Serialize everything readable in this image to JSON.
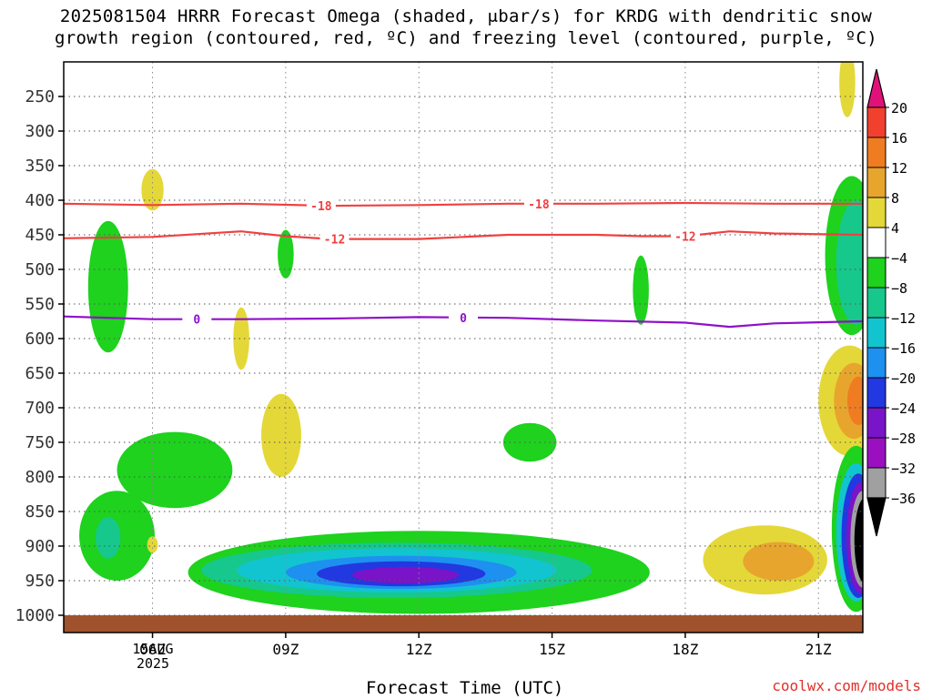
{
  "title_lines": [
    "2025081504 HRRR Forecast Omega (shaded, μbar/s) for KRDG with dendritic snow",
    "growth region (contoured, red, ºC) and freezing level (contoured, purple, ºC)"
  ],
  "credit": "coolwx.com/models",
  "chart_data": {
    "type": "heatmap",
    "xlabel": "Forecast Time (UTC)",
    "ylabel": "",
    "x_axis": {
      "ticks": [
        "06Z",
        "09Z",
        "12Z",
        "15Z",
        "18Z",
        "21Z"
      ],
      "tick_hours": [
        6,
        9,
        12,
        15,
        18,
        21
      ],
      "range_hours": [
        4,
        22
      ],
      "date_label": [
        "15AUG",
        "2025"
      ]
    },
    "y_axis": {
      "ticks": [
        250,
        300,
        350,
        400,
        450,
        500,
        550,
        600,
        650,
        700,
        750,
        800,
        850,
        900,
        950,
        1000
      ],
      "range_hpa": [
        200,
        1025
      ],
      "inverted": true
    },
    "grid": true,
    "colorbar": {
      "labels": [
        "20",
        "16",
        "12",
        "8",
        "4",
        "−4",
        "−8",
        "−12",
        "−16",
        "−20",
        "−24",
        "−28",
        "−32",
        "−36"
      ],
      "bins": [
        {
          "min": 20,
          "color": "#e0127a"
        },
        {
          "min": 16,
          "max": 20,
          "color": "#f2402e"
        },
        {
          "min": 12,
          "max": 16,
          "color": "#f07c22"
        },
        {
          "min": 8,
          "max": 12,
          "color": "#e8a52e"
        },
        {
          "min": 4,
          "max": 8,
          "color": "#e4d838"
        },
        {
          "min": -4,
          "max": 4,
          "color": "#ffffff"
        },
        {
          "min": -8,
          "max": -4,
          "color": "#1ed21e"
        },
        {
          "min": -12,
          "max": -8,
          "color": "#16c88c"
        },
        {
          "min": -16,
          "max": -12,
          "color": "#12c4d0"
        },
        {
          "min": -20,
          "max": -16,
          "color": "#1e90f0"
        },
        {
          "min": -24,
          "max": -20,
          "color": "#2238e0"
        },
        {
          "min": -28,
          "max": -24,
          "color": "#7a14c8"
        },
        {
          "min": -32,
          "max": -28,
          "color": "#9a10c0"
        },
        {
          "min": -36,
          "max": -32,
          "color": "#a0a0a0"
        },
        {
          "max": -36,
          "color": "#000000"
        }
      ]
    },
    "contours": [
      {
        "name": "dendritic snow growth region",
        "units": "ºC",
        "color": "#f04040",
        "lines": [
          {
            "level": "-18",
            "x": [
              4,
              6,
              8,
              10,
              12,
              14,
              16,
              18,
              20,
              22
            ],
            "y": [
              405,
              407,
              405,
              408,
              407,
              405,
              405,
              404,
              405,
              405
            ],
            "label_x": [
              9.8,
              14.7
            ]
          },
          {
            "level": "-12",
            "x": [
              4,
              6,
              8,
              9,
              10,
              12,
              14,
              16,
              17,
              18,
              19,
              20,
              22
            ],
            "y": [
              455,
              453,
              445,
              452,
              456,
              456,
              450,
              450,
              452,
              452,
              445,
              448,
              450
            ],
            "label_x": [
              10.1,
              18.0
            ]
          }
        ]
      },
      {
        "name": "freezing level",
        "units": "ºC",
        "color": "#9010c8",
        "lines": [
          {
            "level": "0",
            "x": [
              4,
              6,
              8,
              10,
              12,
              14,
              16,
              18,
              19,
              20,
              22
            ],
            "y": [
              568,
              572,
              572,
              571,
              569,
              570,
              574,
              577,
              583,
              578,
              575
            ],
            "label_x": [
              7.0,
              13.0
            ]
          }
        ]
      }
    ],
    "omega_regions": [
      {
        "bin": "-8 to -4",
        "shape": "ellipse",
        "t": 5.0,
        "p": 525,
        "rt": 0.45,
        "rp": 95
      },
      {
        "bin": "4 to 8",
        "shape": "ellipse",
        "t": 6.0,
        "p": 385,
        "rt": 0.25,
        "rp": 30
      },
      {
        "bin": "-8 to -4",
        "shape": "ellipse",
        "t": 9.0,
        "p": 478,
        "rt": 0.18,
        "rp": 35
      },
      {
        "bin": "4 to 8",
        "shape": "ellipse",
        "t": 8.0,
        "p": 600,
        "rt": 0.18,
        "rp": 45
      },
      {
        "bin": "4 to 8",
        "shape": "ellipse",
        "t": 8.9,
        "p": 740,
        "rt": 0.45,
        "rp": 60
      },
      {
        "bin": "-8 to -4",
        "shape": "ellipse",
        "t": 17.0,
        "p": 530,
        "rt": 0.18,
        "rp": 50
      },
      {
        "bin": "-8 to -4",
        "shape": "ellipse",
        "t": 14.5,
        "p": 750,
        "rt": 0.6,
        "rp": 28
      },
      {
        "bin": "-8 to -4",
        "shape": "ellipse",
        "t": 5.2,
        "p": 885,
        "rt": 0.85,
        "rp": 65
      },
      {
        "bin": "-8 to -4",
        "shape": "ellipse",
        "t": 6.5,
        "p": 790,
        "rt": 1.3,
        "rp": 55
      },
      {
        "bin": "-12 to -8",
        "shape": "ellipse",
        "t": 5.0,
        "p": 888,
        "rt": 0.28,
        "rp": 30
      },
      {
        "bin": "4 to 8",
        "shape": "ellipse",
        "t": 6.0,
        "p": 898,
        "rt": 0.12,
        "rp": 12
      },
      {
        "bin": "-8 to -4",
        "shape": "ellipse",
        "t": 12.0,
        "p": 938,
        "rt": 5.2,
        "rp": 60
      },
      {
        "bin": "-12 to -8",
        "shape": "ellipse",
        "t": 11.5,
        "p": 935,
        "rt": 4.4,
        "rp": 40
      },
      {
        "bin": "-16 to -12",
        "shape": "ellipse",
        "t": 11.5,
        "p": 935,
        "rt": 3.6,
        "rp": 32
      },
      {
        "bin": "-20 to -16",
        "shape": "ellipse",
        "t": 11.6,
        "p": 938,
        "rt": 2.6,
        "rp": 24
      },
      {
        "bin": "-24 to -20",
        "shape": "ellipse",
        "t": 11.6,
        "p": 940,
        "rt": 1.9,
        "rp": 18
      },
      {
        "bin": "-28 to -24",
        "shape": "ellipse",
        "t": 11.7,
        "p": 942,
        "rt": 1.2,
        "rp": 12
      },
      {
        "bin": "4 to 8",
        "shape": "ellipse",
        "t": 19.8,
        "p": 920,
        "rt": 1.4,
        "rp": 50
      },
      {
        "bin": "8 to 12",
        "shape": "ellipse",
        "t": 20.1,
        "p": 922,
        "rt": 0.8,
        "rp": 28
      },
      {
        "bin": "4 to 8",
        "shape": "ellipse",
        "t": 21.65,
        "p": 230,
        "rt": 0.18,
        "rp": 50
      },
      {
        "bin": "-8 to -4",
        "shape": "ellipse",
        "t": 21.75,
        "p": 480,
        "rt": 0.6,
        "rp": 115
      },
      {
        "bin": "-12 to -8",
        "shape": "ellipse",
        "t": 21.85,
        "p": 490,
        "rt": 0.45,
        "rp": 90
      },
      {
        "bin": "4 to 8",
        "shape": "ellipse",
        "t": 21.7,
        "p": 690,
        "rt": 0.7,
        "rp": 80
      },
      {
        "bin": "8 to 12",
        "shape": "ellipse",
        "t": 21.8,
        "p": 690,
        "rt": 0.45,
        "rp": 55
      },
      {
        "bin": "12 to 16",
        "shape": "ellipse",
        "t": 21.9,
        "p": 690,
        "rt": 0.25,
        "rp": 35
      },
      {
        "bin": "-8 to -4",
        "shape": "ellipse",
        "t": 21.85,
        "p": 875,
        "rt": 0.55,
        "rp": 120
      },
      {
        "bin": "-16 to -12",
        "shape": "ellipse",
        "t": 21.85,
        "p": 880,
        "rt": 0.45,
        "rp": 100
      },
      {
        "bin": "-24 to -20",
        "shape": "ellipse",
        "t": 21.9,
        "p": 885,
        "rt": 0.38,
        "rp": 90
      },
      {
        "bin": "-28 to -24",
        "shape": "ellipse",
        "t": 21.95,
        "p": 888,
        "rt": 0.32,
        "rp": 80
      },
      {
        "bin": "-36 to -32",
        "shape": "ellipse",
        "t": 22.0,
        "p": 890,
        "rt": 0.28,
        "rp": 70
      },
      {
        "bin": "< -36",
        "shape": "ellipse",
        "t": 22.05,
        "p": 892,
        "rt": 0.24,
        "rp": 62
      }
    ],
    "ground": {
      "from_p": 1000,
      "color": "#a0522d"
    }
  }
}
